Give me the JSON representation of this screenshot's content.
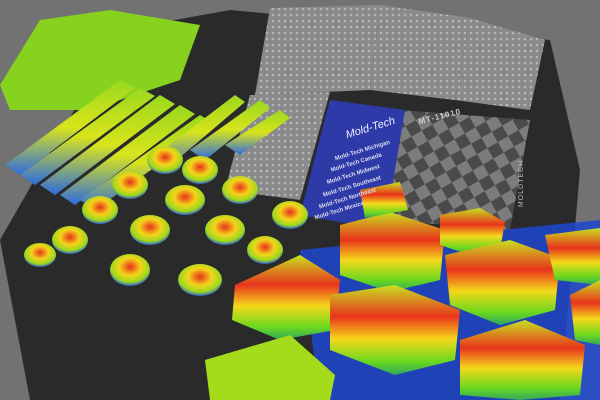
{
  "image": {
    "description_colors": {
      "background": "#6f6f6f",
      "tray": "#2a2a2a",
      "card": "#2d3aa8",
      "peak_high": "#e62a1e",
      "peak_mid": "#f2e21a",
      "peak_low": "#8fd61e",
      "base": "#1e3cdc"
    }
  },
  "card": {
    "logo": "Mold-Tech",
    "locations": [
      "Mold-Tech Michigan",
      "Mold-Tech Canada",
      "Mold-Tech Midwest",
      "Mold-Tech Southeast",
      "Mold-Tech Northeast",
      "Mold-Tech Mexico"
    ]
  },
  "plate_code": "MT-11010",
  "tray_tab": "MOLDTECH"
}
